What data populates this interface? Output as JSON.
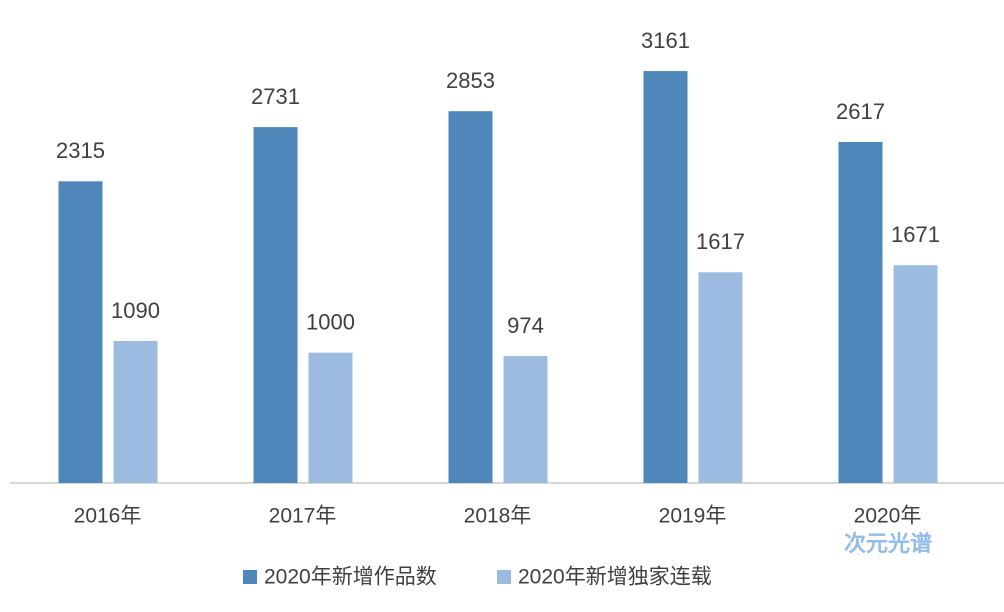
{
  "chart_data": {
    "type": "bar",
    "categories": [
      "2016年",
      "2017年",
      "2018年",
      "2019年",
      "2020年"
    ],
    "series": [
      {
        "name": "2020年新增作品数",
        "color": "#4f87bb",
        "values": [
          2315,
          2731,
          2853,
          3161,
          2617
        ]
      },
      {
        "name": "2020年新增独家连载",
        "color": "#9dbbe0",
        "values": [
          1090,
          1000,
          974,
          1617,
          1671
        ]
      }
    ],
    "legend": "bottom",
    "watermark": "次元光谱"
  }
}
